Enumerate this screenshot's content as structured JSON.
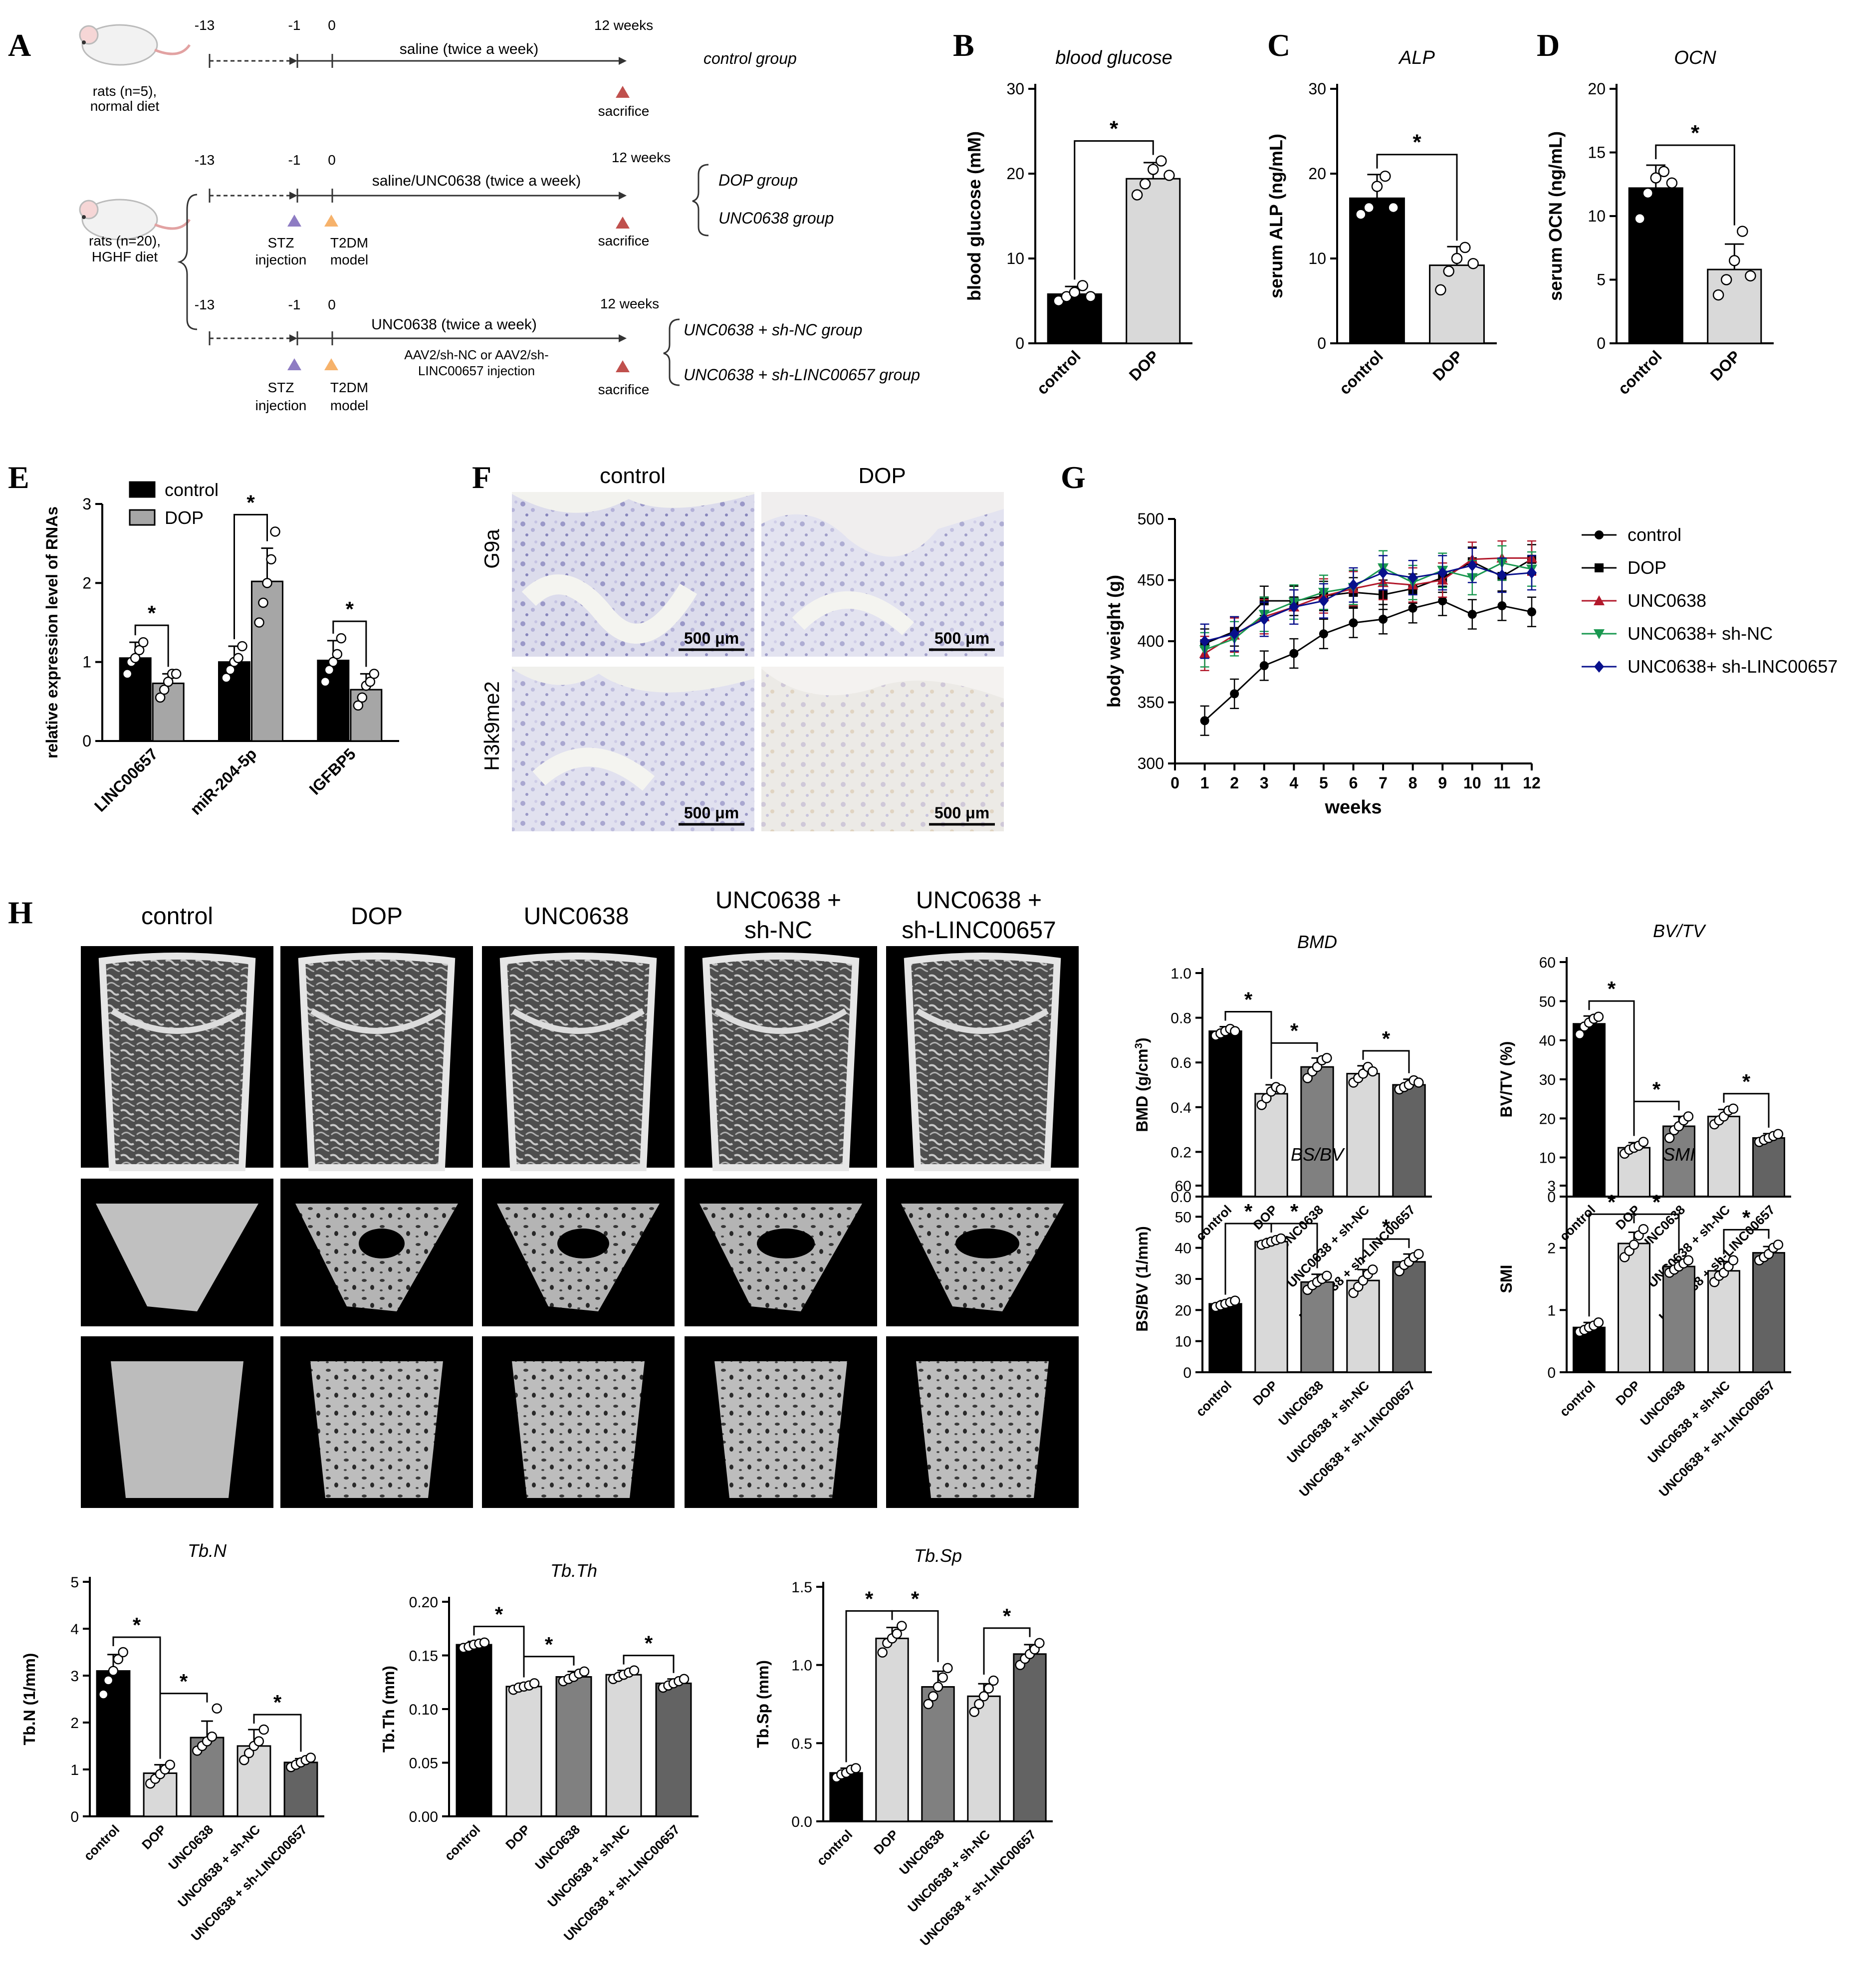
{
  "panel_letters": [
    "A",
    "B",
    "C",
    "D",
    "E",
    "F",
    "G",
    "H"
  ],
  "panelA": {
    "rows": [
      {
        "animal_label": [
          "rats (n=5),",
          "normal diet"
        ],
        "ticks": [
          "-13",
          "-1",
          "0",
          "12 weeks"
        ],
        "treatment": "saline  (twice a week)",
        "end_label": "sacrifice",
        "groups": [
          "control  group"
        ]
      },
      {
        "animal_label": [
          "rats (n=20),",
          "HGHF diet"
        ],
        "ticks": [
          "-13",
          "-1",
          "0",
          "12 weeks"
        ],
        "treatment": "saline/UNC0638  (twice a week)",
        "markers": [
          [
            "STZ",
            "injection"
          ],
          [
            "T2DM",
            "model"
          ]
        ],
        "end_label": "sacrifice",
        "groups": [
          "DOP group",
          "UNC0638 group"
        ]
      },
      {
        "ticks": [
          "-13",
          "-1",
          "0",
          "12 weeks"
        ],
        "treatment": "UNC0638  (twice a week)",
        "treatment2": [
          "AAV2/sh-NC or AAV2/sh-",
          "LINC00657 injection"
        ],
        "markers": [
          [
            "STZ",
            "injection"
          ],
          [
            "T2DM",
            "model"
          ]
        ],
        "end_label": "sacrifice",
        "groups": [
          "UNC0638 + sh-NC group",
          "UNC0638 + sh-LINC00657 group"
        ]
      }
    ]
  },
  "panelF": {
    "columns": [
      "control",
      "DOP"
    ],
    "rows": [
      "G9a",
      "H3k9me2"
    ],
    "scale_bar": "500 μm"
  },
  "panelH_images": {
    "columns": [
      "control",
      "DOP",
      "UNC0638",
      [
        "UNC0638 +",
        "sh-NC"
      ],
      [
        "UNC0638 +",
        "sh-LINC00657"
      ]
    ]
  },
  "colors": {
    "black": "#000000",
    "light_gray": "#d9d9d9",
    "mid_gray": "#808080",
    "dark_gray": "#636363",
    "G_control": "#000000",
    "G_DOP": "#000000",
    "G_UNC0638": "#b2182b",
    "G_shNC": "#1a9850",
    "G_shLINC": "#08108c"
  },
  "chart_data": [
    {
      "id": "B",
      "type": "bar",
      "title": "blood glucose",
      "ylabel": "blood glucose (mM)",
      "categories": [
        "control",
        "DOP"
      ],
      "values": [
        5.8,
        19.4
      ],
      "errors": [
        0.9,
        1.9
      ],
      "points": [
        [
          5.0,
          5.5,
          6.0,
          6.8,
          5.5
        ],
        [
          17.5,
          18.8,
          20.5,
          21.5,
          19.8
        ]
      ],
      "ylim": [
        0,
        30
      ],
      "yticks": [
        0,
        10,
        20,
        30
      ],
      "sig": [
        [
          "0",
          "1",
          "*"
        ]
      ],
      "colors": [
        "#000000",
        "#d9d9d9"
      ]
    },
    {
      "id": "C",
      "type": "bar",
      "title": "ALP",
      "ylabel": "serum  ALP (ng/mL)",
      "categories": [
        "control",
        "DOP"
      ],
      "values": [
        17.1,
        9.2
      ],
      "errors": [
        2.8,
        2.2
      ],
      "points": [
        [
          15.2,
          16.0,
          18.5,
          19.7,
          16.0
        ],
        [
          6.3,
          8.5,
          10.0,
          11.3,
          9.4
        ]
      ],
      "ylim": [
        0,
        30
      ],
      "yticks": [
        0,
        10,
        20,
        30
      ],
      "sig": [
        [
          "0",
          "1",
          "*"
        ]
      ],
      "colors": [
        "#000000",
        "#d9d9d9"
      ]
    },
    {
      "id": "D",
      "type": "bar",
      "title": "OCN",
      "ylabel": "serum  OCN (ng/mL)",
      "categories": [
        "control",
        "DOP"
      ],
      "values": [
        12.2,
        5.8
      ],
      "errors": [
        1.8,
        2.0
      ],
      "points": [
        [
          9.8,
          11.8,
          13.0,
          13.5,
          12.6
        ],
        [
          3.8,
          5.0,
          6.5,
          8.8,
          5.3
        ]
      ],
      "ylim": [
        0,
        20
      ],
      "yticks": [
        0,
        5,
        10,
        15,
        20
      ],
      "sig": [
        [
          "0",
          "1",
          "*"
        ]
      ],
      "colors": [
        "#000000",
        "#d9d9d9"
      ]
    },
    {
      "id": "E",
      "type": "bar",
      "ylabel": "relative expression level of RNAs",
      "categories": [
        "LINC00657",
        "miR-204-5p",
        "IGFBP5"
      ],
      "series": [
        {
          "name": "control",
          "values": [
            1.05,
            1.0,
            1.02
          ],
          "errors": [
            0.2,
            0.2,
            0.25
          ],
          "points": [
            [
              0.85,
              1.0,
              1.05,
              1.15,
              1.25
            ],
            [
              0.8,
              0.9,
              1.0,
              1.05,
              1.2
            ],
            [
              0.75,
              0.9,
              1.0,
              1.1,
              1.3
            ]
          ],
          "color": "#000000"
        },
        {
          "name": "DOP",
          "values": [
            0.73,
            2.02,
            0.65
          ],
          "errors": [
            0.12,
            0.42,
            0.2
          ],
          "points": [
            [
              0.55,
              0.65,
              0.75,
              0.85,
              0.85
            ],
            [
              1.5,
              1.75,
              2.0,
              2.3,
              2.65
            ],
            [
              0.45,
              0.55,
              0.7,
              0.75,
              0.85
            ]
          ],
          "color": "#a6a6a6"
        }
      ],
      "ylim": [
        0,
        3
      ],
      "yticks": [
        0,
        1,
        2,
        3
      ],
      "legend": "top-left",
      "sig": [
        [
          "0",
          "0",
          "*"
        ],
        [
          "1",
          "1",
          "*"
        ],
        [
          "2",
          "2",
          "*"
        ]
      ]
    },
    {
      "id": "G",
      "type": "line",
      "xlabel": "weeks",
      "ylabel": "body weight (g)",
      "x": [
        1,
        2,
        3,
        4,
        5,
        6,
        7,
        8,
        9,
        10,
        11,
        12
      ],
      "series": [
        {
          "name": "control",
          "values": [
            335,
            357,
            380,
            390,
            406,
            415,
            418,
            427,
            433,
            422,
            429,
            424
          ],
          "err": 12,
          "color": "#000000",
          "marker": "circle"
        },
        {
          "name": "DOP",
          "values": [
            398,
            408,
            433,
            433,
            437,
            440,
            438,
            443,
            452,
            465,
            453,
            467
          ],
          "err": 12,
          "color": "#000000",
          "marker": "square"
        },
        {
          "name": "UNC0638",
          "values": [
            390,
            405,
            420,
            428,
            437,
            443,
            448,
            446,
            450,
            467,
            468,
            468
          ],
          "err": 14,
          "color": "#b2182b",
          "marker": "triangle-up"
        },
        {
          "name": "UNC0638+ sh-NC",
          "values": [
            393,
            402,
            422,
            432,
            440,
            444,
            460,
            448,
            458,
            452,
            464,
            459
          ],
          "err": 14,
          "color": "#1a9850",
          "marker": "triangle-down"
        },
        {
          "name": "UNC0638+ sh-LINC00657",
          "values": [
            400,
            406,
            418,
            428,
            433,
            446,
            456,
            452,
            456,
            462,
            454,
            456
          ],
          "err": 14,
          "color": "#08108c",
          "marker": "diamond"
        }
      ],
      "xlim": [
        0,
        12
      ],
      "ylim": [
        300,
        500
      ],
      "xticks": [
        0,
        1,
        2,
        3,
        4,
        5,
        6,
        7,
        8,
        9,
        10,
        11,
        12
      ],
      "yticks": [
        300,
        350,
        400,
        450,
        500
      ],
      "legend": "right"
    },
    {
      "id": "BMD",
      "type": "bar",
      "title": "BMD",
      "ylabel": "BMD (g/cm3)",
      "categories": [
        "control",
        "DOP",
        "UNC0638",
        "UNC0638 + sh-NC",
        "UNC0638 + sh-LINC00657"
      ],
      "values": [
        0.74,
        0.46,
        0.58,
        0.55,
        0.5
      ],
      "errors": [
        0.02,
        0.04,
        0.04,
        0.035,
        0.025
      ],
      "points": [
        [
          0.72,
          0.73,
          0.74,
          0.75,
          0.74
        ],
        [
          0.41,
          0.44,
          0.47,
          0.49,
          0.48
        ],
        [
          0.53,
          0.56,
          0.58,
          0.61,
          0.62
        ],
        [
          0.51,
          0.53,
          0.55,
          0.58,
          0.56
        ],
        [
          0.48,
          0.49,
          0.5,
          0.52,
          0.51
        ]
      ],
      "ylim": [
        0,
        1.0
      ],
      "yticks": [
        0.0,
        0.2,
        0.4,
        0.6,
        0.8,
        1.0
      ],
      "sig": [
        [
          "0",
          "1",
          "*"
        ],
        [
          "1",
          "2",
          "*"
        ],
        [
          "3",
          "4",
          "*"
        ]
      ]
    },
    {
      "id": "BVTV",
      "type": "bar",
      "title": "BV/TV",
      "ylabel": "BV/TV (%)",
      "categories": [
        "control",
        "DOP",
        "UNC0638",
        "UNC0638 + sh-NC",
        "UNC0638 + sh-LINC00657"
      ],
      "values": [
        44.2,
        12.5,
        18.0,
        20.5,
        15.0
      ],
      "errors": [
        2.0,
        1.3,
        2.5,
        1.8,
        1.1
      ],
      "points": [
        [
          41.5,
          43.5,
          44.5,
          45.5,
          46.0
        ],
        [
          11.0,
          12.0,
          12.5,
          13.0,
          14.0
        ],
        [
          15.0,
          17.0,
          18.0,
          19.5,
          20.5
        ],
        [
          18.5,
          19.5,
          20.5,
          22.0,
          22.5
        ],
        [
          14.0,
          14.5,
          15.0,
          15.5,
          16.0
        ]
      ],
      "ylim": [
        0,
        60
      ],
      "yticks": [
        0,
        10,
        20,
        30,
        40,
        50,
        60
      ],
      "sig": [
        [
          "0",
          "1",
          "*"
        ],
        [
          "1",
          "2",
          "*"
        ],
        [
          "3",
          "4",
          "*"
        ]
      ]
    },
    {
      "id": "BSBV",
      "type": "bar",
      "title": "BS/BV",
      "ylabel": "BS/BV (1/mm)",
      "categories": [
        "control",
        "DOP",
        "UNC0638",
        "UNC0638 + sh-NC",
        "UNC0638 + sh-LINC00657"
      ],
      "values": [
        22.0,
        42.0,
        29.0,
        29.5,
        35.5
      ],
      "errors": [
        1.0,
        1.0,
        2.5,
        3.5,
        2.5
      ],
      "points": [
        [
          21.0,
          21.5,
          22.0,
          22.5,
          23.0
        ],
        [
          41.0,
          41.5,
          42.0,
          42.5,
          43.0
        ],
        [
          26.5,
          28.0,
          29.0,
          30.0,
          31.0
        ],
        [
          25.5,
          27.5,
          29.5,
          31.5,
          33.0
        ],
        [
          32.5,
          34.5,
          35.5,
          37.0,
          38.0
        ]
      ],
      "ylim": [
        0,
        60
      ],
      "yticks": [
        0,
        10,
        20,
        30,
        40,
        50,
        60
      ],
      "sig": [
        [
          "0",
          "1",
          "*"
        ],
        [
          "1",
          "2",
          "*"
        ],
        [
          "3",
          "4",
          "*"
        ]
      ]
    },
    {
      "id": "SMI",
      "type": "bar",
      "title": "SMI",
      "ylabel": "SMI",
      "categories": [
        "control",
        "DOP",
        "UNC0638",
        "UNC0638 + sh-NC",
        "UNC0638 + sh-LINC00657"
      ],
      "values": [
        0.72,
        2.07,
        1.7,
        1.63,
        1.92
      ],
      "errors": [
        0.08,
        0.18,
        0.1,
        0.15,
        0.1
      ],
      "points": [
        [
          0.65,
          0.68,
          0.72,
          0.75,
          0.8
        ],
        [
          1.85,
          1.95,
          2.05,
          2.2,
          2.3
        ],
        [
          1.6,
          1.65,
          1.7,
          1.75,
          1.8
        ],
        [
          1.45,
          1.55,
          1.6,
          1.7,
          1.8
        ],
        [
          1.8,
          1.85,
          1.9,
          2.0,
          2.05
        ]
      ],
      "ylim": [
        0,
        3
      ],
      "yticks": [
        0,
        1,
        2,
        3
      ],
      "sig": [
        [
          "0",
          "1",
          "*"
        ],
        [
          "1",
          "2",
          "*"
        ],
        [
          "3",
          "4",
          "*"
        ]
      ]
    },
    {
      "id": "TbN",
      "type": "bar",
      "title": "Tb.N",
      "ylabel": "Tb.N (1/mm)",
      "categories": [
        "control",
        "DOP",
        "UNC0638",
        "UNC0638 + sh-NC",
        "UNC0638 + sh-LINC00657"
      ],
      "values": [
        3.1,
        0.92,
        1.68,
        1.5,
        1.15
      ],
      "errors": [
        0.35,
        0.18,
        0.35,
        0.35,
        0.08
      ],
      "points": [
        [
          2.6,
          2.9,
          3.1,
          3.35,
          3.5
        ],
        [
          0.7,
          0.8,
          0.9,
          1.0,
          1.1
        ],
        [
          1.4,
          1.5,
          1.6,
          1.7,
          2.3
        ],
        [
          1.2,
          1.35,
          1.5,
          1.6,
          1.85
        ],
        [
          1.05,
          1.1,
          1.15,
          1.2,
          1.25
        ]
      ],
      "ylim": [
        0,
        5
      ],
      "yticks": [
        0,
        1,
        2,
        3,
        4,
        5
      ],
      "sig": [
        [
          "0",
          "1",
          "*"
        ],
        [
          "1",
          "2",
          "*"
        ],
        [
          "3",
          "4",
          "*"
        ]
      ]
    },
    {
      "id": "TbTh",
      "type": "bar",
      "title": "Tb.Th",
      "ylabel": "Tb.Th (mm)",
      "categories": [
        "control",
        "DOP",
        "UNC0638",
        "UNC0638 + sh-NC",
        "UNC0638 + sh-LINC00657"
      ],
      "values": [
        0.16,
        0.121,
        0.13,
        0.132,
        0.124
      ],
      "errors": [
        0.003,
        0.003,
        0.005,
        0.004,
        0.004
      ],
      "points": [
        [
          0.157,
          0.158,
          0.16,
          0.161,
          0.162
        ],
        [
          0.118,
          0.12,
          0.121,
          0.122,
          0.124
        ],
        [
          0.126,
          0.128,
          0.13,
          0.133,
          0.135
        ],
        [
          0.128,
          0.13,
          0.132,
          0.134,
          0.136
        ],
        [
          0.12,
          0.122,
          0.124,
          0.126,
          0.128
        ]
      ],
      "ylim": [
        0,
        0.2
      ],
      "yticks": [
        0.0,
        0.05,
        0.1,
        0.15,
        0.2
      ],
      "sig": [
        [
          "0",
          "1",
          "*"
        ],
        [
          "1",
          "2",
          "*"
        ],
        [
          "3",
          "4",
          "*"
        ]
      ]
    },
    {
      "id": "TbSp",
      "type": "bar",
      "title": "Tb.Sp",
      "ylabel": "Tb.Sp (mm)",
      "categories": [
        "control",
        "DOP",
        "UNC0638",
        "UNC0638 + sh-NC",
        "UNC0638 + sh-LINC00657"
      ],
      "values": [
        0.31,
        1.17,
        0.86,
        0.8,
        1.07
      ],
      "errors": [
        0.03,
        0.07,
        0.1,
        0.08,
        0.06
      ],
      "points": [
        [
          0.28,
          0.3,
          0.31,
          0.33,
          0.34
        ],
        [
          1.08,
          1.14,
          1.17,
          1.2,
          1.25
        ],
        [
          0.75,
          0.8,
          0.86,
          0.92,
          0.98
        ],
        [
          0.7,
          0.75,
          0.8,
          0.85,
          0.9
        ],
        [
          1.0,
          1.04,
          1.07,
          1.1,
          1.14
        ]
      ],
      "ylim": [
        0,
        1.5
      ],
      "yticks": [
        0.0,
        0.5,
        1.0,
        1.5
      ],
      "sig": [
        [
          "0",
          "1",
          "*"
        ],
        [
          "1",
          "2",
          "*"
        ],
        [
          "3",
          "4",
          "*"
        ]
      ]
    }
  ]
}
